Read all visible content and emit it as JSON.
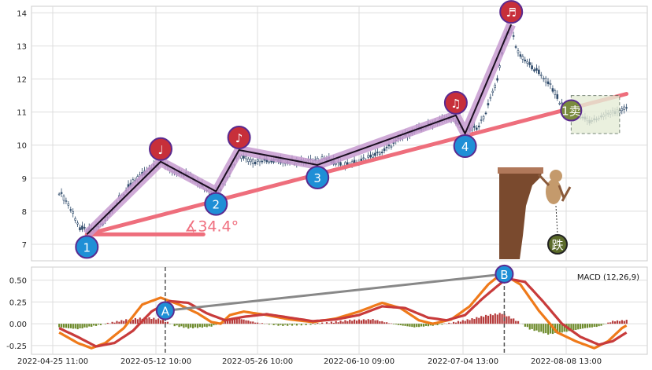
{
  "chart_data": [
    {
      "type": "candlestick",
      "x_ticks": [
        "2022-04-25 11:00",
        "2022-05-12 10:00",
        "2022-05-26 10:00",
        "2022-06-10 09:00",
        "2022-07-04 13:00",
        "2022-08-08 13:00"
      ],
      "y_ticks": [
        7,
        8,
        9,
        10,
        11,
        12,
        13,
        14
      ],
      "ylim": [
        6.5,
        14.2
      ],
      "grid": true,
      "price_path": [
        [
          0,
          8.6
        ],
        [
          4,
          8.2
        ],
        [
          9,
          7.5
        ],
        [
          14,
          7.4
        ],
        [
          20,
          7.7
        ],
        [
          26,
          8.4
        ],
        [
          32,
          8.9
        ],
        [
          38,
          9.2
        ],
        [
          44,
          9.5
        ],
        [
          50,
          9.2
        ],
        [
          56,
          9.1
        ],
        [
          62,
          8.8
        ],
        [
          66,
          8.6
        ],
        [
          70,
          8.7
        ],
        [
          74,
          9.2
        ],
        [
          78,
          9.7
        ],
        [
          84,
          9.5
        ],
        [
          92,
          9.55
        ],
        [
          100,
          9.5
        ],
        [
          108,
          9.5
        ],
        [
          116,
          9.6
        ],
        [
          122,
          9.4
        ],
        [
          130,
          9.5
        ],
        [
          140,
          9.8
        ],
        [
          150,
          10.3
        ],
        [
          160,
          10.6
        ],
        [
          170,
          10.85
        ],
        [
          176,
          10.4
        ],
        [
          182,
          10.55
        ],
        [
          186,
          11.2
        ],
        [
          190,
          12.0
        ],
        [
          193,
          13.2
        ],
        [
          196,
          13.5
        ],
        [
          199,
          12.8
        ],
        [
          203,
          12.5
        ],
        [
          208,
          12.2
        ],
        [
          214,
          11.7
        ],
        [
          218,
          11.2
        ],
        [
          222,
          11.1
        ],
        [
          226,
          10.9
        ],
        [
          230,
          10.7
        ],
        [
          236,
          10.9
        ],
        [
          242,
          11.0
        ],
        [
          245,
          11.1
        ]
      ],
      "wave_points": [
        {
          "x": 12,
          "y": 7.3,
          "label": "1",
          "kind": "blue"
        },
        {
          "x": 44,
          "y": 9.5,
          "label": "♩",
          "kind": "red"
        },
        {
          "x": 68,
          "y": 8.6,
          "label": "2",
          "kind": "blue"
        },
        {
          "x": 78,
          "y": 9.85,
          "label": "♪",
          "kind": "red"
        },
        {
          "x": 112,
          "y": 9.4,
          "label": "3",
          "kind": "blue"
        },
        {
          "x": 172,
          "y": 10.9,
          "label": "♫",
          "kind": "red"
        },
        {
          "x": 176,
          "y": 10.35,
          "label": "4",
          "kind": "blue"
        },
        {
          "x": 196,
          "y": 13.65,
          "label": "♬",
          "kind": "red"
        }
      ],
      "trendline": {
        "from": [
          12,
          7.3
        ],
        "to": [
          246,
          11.55
        ]
      },
      "angle_label": "∡34.4°",
      "sell_marker": {
        "x": 222,
        "y": 11.05,
        "label": "1卖"
      },
      "fall_marker": {
        "label": "跌"
      },
      "box": {
        "x_from": 222,
        "x_to": 243,
        "y_from": 10.35,
        "y_to": 11.5
      }
    },
    {
      "type": "macd",
      "label": "MACD (12,26,9)",
      "y_ticks": [
        -0.25,
        0.0,
        0.25,
        0.5
      ],
      "ylim": [
        -0.35,
        0.65
      ],
      "dif_path": [
        [
          0,
          -0.1
        ],
        [
          8,
          -0.22
        ],
        [
          14,
          -0.28
        ],
        [
          20,
          -0.22
        ],
        [
          28,
          -0.05
        ],
        [
          36,
          0.22
        ],
        [
          44,
          0.3
        ],
        [
          52,
          0.22
        ],
        [
          60,
          0.12
        ],
        [
          66,
          0.02
        ],
        [
          70,
          0.0
        ],
        [
          74,
          0.1
        ],
        [
          80,
          0.14
        ],
        [
          90,
          0.1
        ],
        [
          100,
          0.05
        ],
        [
          110,
          0.02
        ],
        [
          120,
          0.06
        ],
        [
          130,
          0.14
        ],
        [
          140,
          0.24
        ],
        [
          148,
          0.18
        ],
        [
          156,
          0.04
        ],
        [
          162,
          0.0
        ],
        [
          170,
          0.05
        ],
        [
          178,
          0.2
        ],
        [
          186,
          0.45
        ],
        [
          192,
          0.58
        ],
        [
          200,
          0.45
        ],
        [
          208,
          0.15
        ],
        [
          216,
          -0.1
        ],
        [
          224,
          -0.2
        ],
        [
          232,
          -0.28
        ],
        [
          238,
          -0.2
        ],
        [
          244,
          -0.05
        ],
        [
          246,
          -0.02
        ]
      ],
      "dea_path": [
        [
          0,
          -0.05
        ],
        [
          8,
          -0.15
        ],
        [
          16,
          -0.26
        ],
        [
          24,
          -0.22
        ],
        [
          32,
          -0.08
        ],
        [
          40,
          0.14
        ],
        [
          48,
          0.26
        ],
        [
          56,
          0.24
        ],
        [
          64,
          0.12
        ],
        [
          72,
          0.04
        ],
        [
          80,
          0.08
        ],
        [
          90,
          0.11
        ],
        [
          100,
          0.07
        ],
        [
          110,
          0.03
        ],
        [
          120,
          0.05
        ],
        [
          130,
          0.1
        ],
        [
          140,
          0.2
        ],
        [
          150,
          0.18
        ],
        [
          160,
          0.07
        ],
        [
          168,
          0.04
        ],
        [
          176,
          0.1
        ],
        [
          184,
          0.3
        ],
        [
          194,
          0.52
        ],
        [
          202,
          0.48
        ],
        [
          210,
          0.25
        ],
        [
          218,
          0.0
        ],
        [
          226,
          -0.15
        ],
        [
          234,
          -0.24
        ],
        [
          240,
          -0.2
        ],
        [
          246,
          -0.1
        ]
      ],
      "hist_pattern": [
        [
          0,
          -0.04
        ],
        [
          8,
          -0.06
        ],
        [
          14,
          -0.03
        ],
        [
          22,
          0.01
        ],
        [
          30,
          0.05
        ],
        [
          38,
          0.07
        ],
        [
          44,
          0.05
        ],
        [
          50,
          -0.02
        ],
        [
          56,
          -0.05
        ],
        [
          62,
          -0.04
        ],
        [
          66,
          -0.03
        ],
        [
          72,
          0.03
        ],
        [
          78,
          0.06
        ],
        [
          86,
          0.01
        ],
        [
          96,
          -0.02
        ],
        [
          106,
          -0.01
        ],
        [
          116,
          0.01
        ],
        [
          126,
          0.04
        ],
        [
          136,
          0.05
        ],
        [
          146,
          -0.01
        ],
        [
          154,
          -0.04
        ],
        [
          162,
          -0.02
        ],
        [
          170,
          0.01
        ],
        [
          178,
          0.05
        ],
        [
          186,
          0.1
        ],
        [
          192,
          0.12
        ],
        [
          198,
          0.04
        ],
        [
          204,
          -0.06
        ],
        [
          212,
          -0.12
        ],
        [
          220,
          -0.09
        ],
        [
          228,
          -0.05
        ],
        [
          234,
          -0.03
        ],
        [
          240,
          0.03
        ],
        [
          246,
          0.04
        ]
      ],
      "markers": [
        {
          "x": 46,
          "y": 0.15,
          "label": "A"
        },
        {
          "x": 193,
          "y": 0.57,
          "label": "B"
        }
      ]
    }
  ],
  "colors": {
    "blue_node": "#1f8fd6",
    "red_node": "#c72f3a",
    "node_border": "#5a2a8f",
    "wave_band": "#c79bd0",
    "wave_line": "#1a0f1f",
    "trend": "#ee6e7c",
    "candle": "#2e4a6a",
    "dif": "#ef7a1a",
    "dea": "#c83b3b",
    "hist_pos": "#b53a3a",
    "hist_neg": "#6c8a2a",
    "link": "#888888",
    "sell_node": "#7a8b3e",
    "box_fill": "#e6edd6"
  }
}
